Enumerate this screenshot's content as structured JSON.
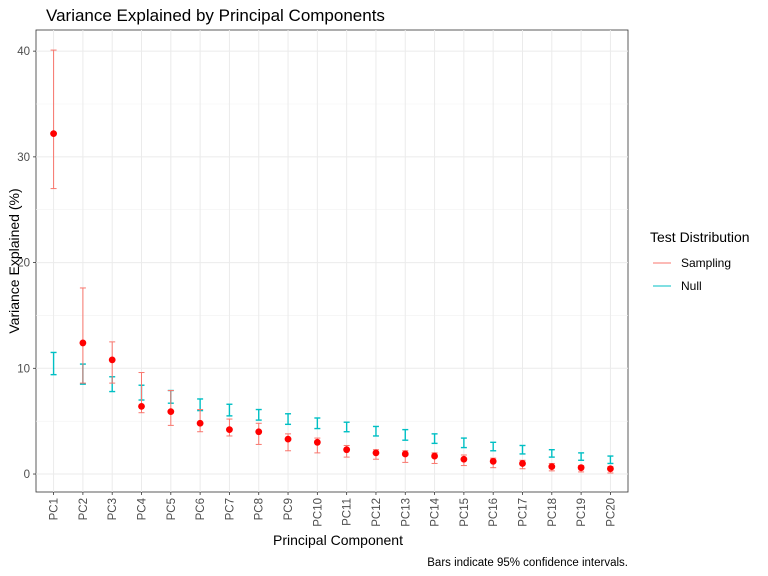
{
  "chart_data": {
    "type": "scatter",
    "title": "Variance Explained by Principal Components",
    "xlabel": "Principal Component",
    "ylabel": "Variance Explained (%)",
    "ylim": [
      -1.7,
      42.0
    ],
    "yticks": [
      0,
      10,
      20,
      30,
      40
    ],
    "grid": true,
    "categories": [
      "PC1",
      "PC2",
      "PC3",
      "PC4",
      "PC5",
      "PC6",
      "PC7",
      "PC8",
      "PC9",
      "PC10",
      "PC11",
      "PC12",
      "PC13",
      "PC14",
      "PC15",
      "PC16",
      "PC17",
      "PC18",
      "PC19",
      "PC20"
    ],
    "legend": {
      "title": "Test Distribution",
      "placement": "right"
    },
    "caption": "Bars indicate 95% confidence intervals.",
    "series": [
      {
        "name": "Sampling",
        "color": "#F8766D",
        "point_color": "#FF0000",
        "values": [
          32.2,
          12.4,
          10.8,
          6.4,
          5.9,
          4.8,
          4.2,
          4.0,
          3.3,
          3.0,
          2.3,
          2.0,
          1.9,
          1.7,
          1.4,
          1.2,
          1.0,
          0.7,
          0.6,
          0.5
        ],
        "lower": [
          27.0,
          8.6,
          8.6,
          5.8,
          4.6,
          4.0,
          3.6,
          2.8,
          2.2,
          2.0,
          1.6,
          1.4,
          1.1,
          1.0,
          0.8,
          0.6,
          0.5,
          0.3,
          0.2,
          0.1
        ],
        "upper": [
          40.1,
          17.6,
          12.5,
          9.6,
          7.9,
          6.1,
          5.2,
          4.8,
          3.8,
          3.4,
          2.7,
          2.3,
          2.2,
          2.0,
          1.8,
          1.5,
          1.3,
          1.0,
          0.8,
          0.7
        ]
      },
      {
        "name": "Null",
        "color": "#00BFC4",
        "lower": [
          9.4,
          8.5,
          7.8,
          7.0,
          6.7,
          6.0,
          5.5,
          5.1,
          4.7,
          4.3,
          4.0,
          3.6,
          3.2,
          2.9,
          2.5,
          2.2,
          1.9,
          1.6,
          1.3,
          1.0
        ],
        "upper": [
          11.5,
          10.4,
          9.2,
          8.4,
          7.9,
          7.1,
          6.6,
          6.1,
          5.7,
          5.3,
          4.9,
          4.5,
          4.2,
          3.8,
          3.4,
          3.0,
          2.7,
          2.3,
          2.0,
          1.7
        ]
      }
    ]
  }
}
